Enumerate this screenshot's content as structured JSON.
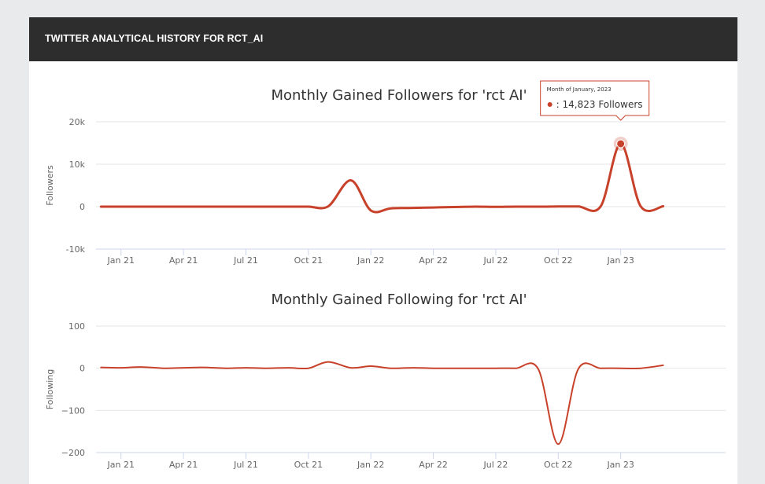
{
  "header": {
    "title": "TWITTER ANALYTICAL HISTORY FOR RCT_AI"
  },
  "colors": {
    "series": "#c8412a",
    "grid": "#e6e6e6",
    "header_bg": "#2d2d2d"
  },
  "chart_data": [
    {
      "type": "line",
      "title": "Monthly Gained Followers for 'rct AI'",
      "ylabel": "Followers",
      "ylim": [
        -10000,
        20000
      ],
      "yticks": [
        -10000,
        0,
        10000,
        20000
      ],
      "ytick_labels": [
        "-10k",
        "0",
        "10k",
        "20k"
      ],
      "xlim": [
        2020.9,
        2023.42
      ],
      "xticks": [
        2021.0,
        2021.25,
        2021.5,
        2021.75,
        2022.0,
        2022.25,
        2022.5,
        2022.75,
        2023.0
      ],
      "xtick_labels": [
        "Jan 21",
        "Apr 21",
        "Jul 21",
        "Oct 21",
        "Jan 22",
        "Apr 22",
        "Jul 22",
        "Oct 22",
        "Jan 23"
      ],
      "x": [
        2020.92,
        2021.0,
        2021.08,
        2021.17,
        2021.25,
        2021.33,
        2021.42,
        2021.5,
        2021.58,
        2021.67,
        2021.75,
        2021.83,
        2021.92,
        2022.0,
        2022.08,
        2022.17,
        2022.25,
        2022.33,
        2022.42,
        2022.5,
        2022.58,
        2022.67,
        2022.75,
        2022.83,
        2022.92,
        2023.0,
        2023.08,
        2023.17
      ],
      "series": [
        {
          "name": "",
          "values": [
            0,
            0,
            0,
            0,
            0,
            0,
            0,
            0,
            0,
            0,
            0,
            100,
            6200,
            -900,
            -400,
            -300,
            -200,
            -100,
            0,
            -50,
            0,
            0,
            50,
            50,
            100,
            14823,
            50,
            100
          ]
        }
      ],
      "tooltip": {
        "header": "Month of January, 2023",
        "value_text": ": 14,823 Followers",
        "index": 25
      },
      "grid": true,
      "legend": "none"
    },
    {
      "type": "line",
      "title": "Monthly Gained Following for 'rct AI'",
      "ylabel": "Following",
      "ylim": [
        -200,
        100
      ],
      "yticks": [
        -200,
        -100,
        0,
        100
      ],
      "ytick_labels": [
        "−200",
        "−100",
        "0",
        "100"
      ],
      "xlim": [
        2020.9,
        2023.42
      ],
      "xticks": [
        2021.0,
        2021.25,
        2021.5,
        2021.75,
        2022.0,
        2022.25,
        2022.5,
        2022.75,
        2023.0
      ],
      "xtick_labels": [
        "Jan 21",
        "Apr 21",
        "Jul 21",
        "Oct 21",
        "Jan 22",
        "Apr 22",
        "Jul 22",
        "Oct 22",
        "Jan 23"
      ],
      "x": [
        2020.92,
        2021.0,
        2021.08,
        2021.17,
        2021.25,
        2021.33,
        2021.42,
        2021.5,
        2021.58,
        2021.67,
        2021.75,
        2021.83,
        2021.92,
        2022.0,
        2022.08,
        2022.17,
        2022.25,
        2022.33,
        2022.42,
        2022.5,
        2022.58,
        2022.67,
        2022.75,
        2022.83,
        2022.92,
        2023.0,
        2023.08,
        2023.17
      ],
      "series": [
        {
          "name": "",
          "values": [
            2,
            1,
            3,
            0,
            1,
            2,
            0,
            1,
            0,
            1,
            0,
            15,
            1,
            5,
            0,
            1,
            0,
            0,
            0,
            0,
            0,
            -2,
            -180,
            -2,
            0,
            0,
            0,
            7
          ]
        }
      ],
      "grid": true,
      "legend": "none"
    }
  ]
}
